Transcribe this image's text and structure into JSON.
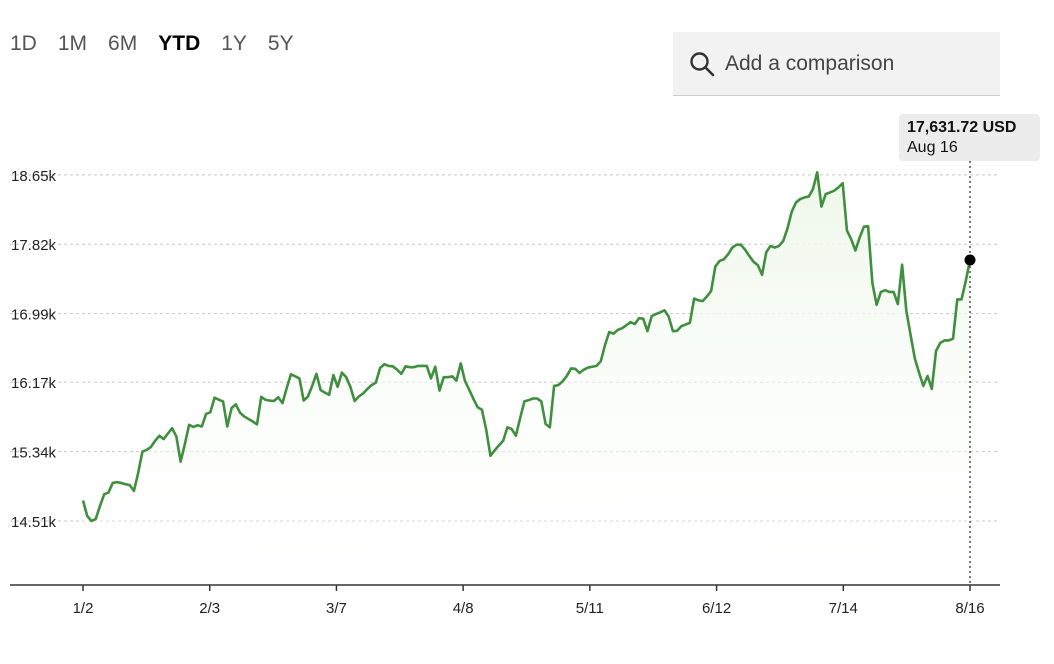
{
  "ranges": {
    "items": [
      {
        "label": "1D",
        "active": false
      },
      {
        "label": "1M",
        "active": false
      },
      {
        "label": "6M",
        "active": false
      },
      {
        "label": "YTD",
        "active": true
      },
      {
        "label": "1Y",
        "active": false
      },
      {
        "label": "5Y",
        "active": false
      }
    ]
  },
  "search": {
    "placeholder": "Add a comparison",
    "icon": "search-icon"
  },
  "tooltip": {
    "value": "17,631.72 USD",
    "date": "Aug 16"
  },
  "colors": {
    "line": "#3f8f3f",
    "area": "#eef7ea",
    "grid": "#c8c8c8"
  },
  "chart_data": {
    "type": "area",
    "title": "",
    "xlabel": "",
    "ylabel": "",
    "ylim": [
      14000,
      18760
    ],
    "y_ticks": [
      {
        "value": 14510,
        "label": "14.51k"
      },
      {
        "value": 15340,
        "label": "15.34k"
      },
      {
        "value": 16170,
        "label": "16.17k"
      },
      {
        "value": 16990,
        "label": "16.99k"
      },
      {
        "value": 17820,
        "label": "17.82k"
      },
      {
        "value": 18650,
        "label": "18.65k"
      }
    ],
    "x_ticks": [
      "1/2",
      "2/3",
      "3/7",
      "4/8",
      "5/11",
      "6/12",
      "7/14",
      "8/16"
    ],
    "grid": true,
    "highlight": {
      "x": "8/16",
      "value": 17631.72
    },
    "series": [
      {
        "values": [
          14755,
          14570,
          14510,
          14535,
          14690,
          14830,
          14850,
          14965,
          14975,
          14965,
          14950,
          14940,
          14870,
          15085,
          15340,
          15360,
          15395,
          15470,
          15530,
          15490,
          15555,
          15620,
          15520,
          15220,
          15430,
          15660,
          15635,
          15655,
          15640,
          15790,
          15810,
          15985,
          15960,
          15940,
          15640,
          15860,
          15905,
          15805,
          15760,
          15730,
          15700,
          15665,
          15995,
          15960,
          15950,
          15945,
          15990,
          15920,
          16100,
          16265,
          16240,
          16215,
          15950,
          16000,
          16125,
          16270,
          16075,
          16045,
          16020,
          16255,
          16115,
          16285,
          16230,
          16115,
          15945,
          16000,
          16035,
          16090,
          16135,
          16165,
          16340,
          16385,
          16365,
          16360,
          16320,
          16270,
          16360,
          16350,
          16350,
          16365,
          16365,
          16365,
          16215,
          16355,
          16070,
          16230,
          16230,
          16240,
          16190,
          16395,
          16185,
          16080,
          15970,
          15870,
          15840,
          15605,
          15290,
          15355,
          15415,
          15470,
          15630,
          15610,
          15530,
          15740,
          15940,
          15955,
          15975,
          15975,
          15940,
          15670,
          15630,
          16125,
          16135,
          16180,
          16245,
          16335,
          16330,
          16280,
          16320,
          16345,
          16355,
          16365,
          16420,
          16615,
          16770,
          16750,
          16795,
          16815,
          16850,
          16890,
          16865,
          16935,
          16930,
          16780,
          16960,
          16985,
          17005,
          17030,
          16955,
          16780,
          16785,
          16840,
          16860,
          16880,
          17170,
          17150,
          17140,
          17195,
          17260,
          17555,
          17620,
          17640,
          17700,
          17780,
          17815,
          17815,
          17755,
          17680,
          17610,
          17570,
          17455,
          17725,
          17800,
          17780,
          17800,
          17860,
          18010,
          18210,
          18320,
          18360,
          18380,
          18390,
          18480,
          18680,
          18270,
          18420,
          18440,
          18460,
          18500,
          18550,
          17985,
          17880,
          17745,
          17900,
          18030,
          18035,
          17355,
          17095,
          17250,
          17270,
          17250,
          17250,
          17105,
          17575,
          17025,
          16735,
          16455,
          16285,
          16125,
          16245,
          16090,
          16545,
          16640,
          16670,
          16670,
          16690,
          17160,
          17160,
          17380,
          17631.72
        ]
      }
    ]
  }
}
